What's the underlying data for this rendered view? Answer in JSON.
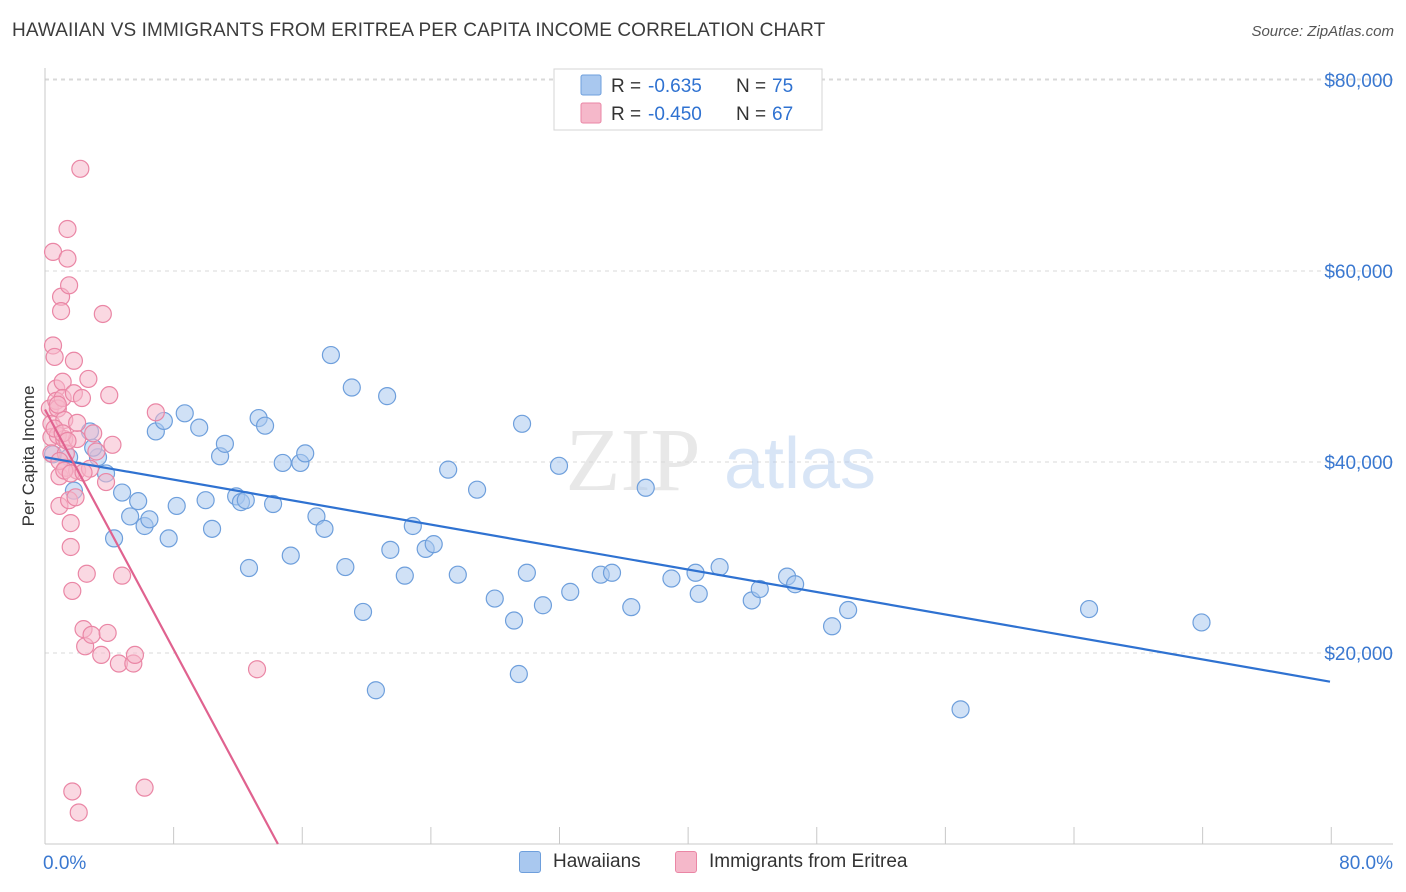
{
  "title": "HAWAIIAN VS IMMIGRANTS FROM ERITREA PER CAPITA INCOME CORRELATION CHART",
  "source": "Source: ZipAtlas.com",
  "watermark": {
    "zip": "ZIP",
    "atlas": "atlas"
  },
  "colors": {
    "blue_fill": "#a9c8ef",
    "blue_stroke": "#6e9fdc",
    "blue_line": "#2f72d1",
    "pink_fill": "#f5b8ca",
    "pink_stroke": "#ea86a5",
    "pink_line": "#e0628f",
    "axis_label": "#3a78d0",
    "grid": "#d9d9d9"
  },
  "legend_top": [
    {
      "r_label": "R = ",
      "r_value": "-0.635",
      "n_label": "N = ",
      "n_value": "75"
    },
    {
      "r_label": "R = ",
      "r_value": "-0.450",
      "n_label": "N = ",
      "n_value": "67"
    }
  ],
  "legend_bottom": [
    "Hawaiians",
    "Immigrants from Eritrea"
  ],
  "chart_data": {
    "type": "scatter",
    "title": "HAWAIIAN VS IMMIGRANTS FROM ERITREA PER CAPITA INCOME CORRELATION CHART",
    "xlabel": "",
    "ylabel": "Per Capita Income",
    "xlim": [
      0,
      80
    ],
    "ylim": [
      0,
      80000
    ],
    "x_tick_labels": [
      "0.0%",
      "80.0%"
    ],
    "y_ticks": [
      20000,
      40000,
      60000,
      80000
    ],
    "y_tick_labels": [
      "$20,000",
      "$40,000",
      "$60,000",
      "$80,000"
    ],
    "grid": true,
    "legend_position": "top-center",
    "series": [
      {
        "name": "Hawaiians",
        "r": -0.635,
        "n": 75,
        "trend": {
          "x": [
            0,
            80
          ],
          "y": [
            40500,
            17000
          ]
        },
        "points": [
          [
            0.5,
            40800
          ],
          [
            1.5,
            40500
          ],
          [
            1.8,
            37000
          ],
          [
            2.8,
            43200
          ],
          [
            3.3,
            40500
          ],
          [
            3.8,
            38800
          ],
          [
            4.3,
            32000
          ],
          [
            4.8,
            36800
          ],
          [
            5.3,
            34300
          ],
          [
            5.8,
            35900
          ],
          [
            6.2,
            33300
          ],
          [
            6.9,
            43200
          ],
          [
            7.4,
            44300
          ],
          [
            7.7,
            32000
          ],
          [
            8.2,
            35400
          ],
          [
            8.7,
            45100
          ],
          [
            9.6,
            43600
          ],
          [
            10.0,
            36000
          ],
          [
            10.4,
            33000
          ],
          [
            10.9,
            40600
          ],
          [
            11.2,
            41900
          ],
          [
            11.9,
            36400
          ],
          [
            12.2,
            35800
          ],
          [
            12.7,
            28900
          ],
          [
            13.3,
            44600
          ],
          [
            13.7,
            43800
          ],
          [
            14.2,
            35600
          ],
          [
            14.8,
            39900
          ],
          [
            15.3,
            30200
          ],
          [
            15.9,
            39900
          ],
          [
            16.2,
            40900
          ],
          [
            16.9,
            34300
          ],
          [
            17.4,
            33000
          ],
          [
            17.8,
            51200
          ],
          [
            18.7,
            29000
          ],
          [
            19.1,
            47800
          ],
          [
            19.8,
            24300
          ],
          [
            20.6,
            16100
          ],
          [
            21.3,
            46900
          ],
          [
            21.5,
            30800
          ],
          [
            22.4,
            28100
          ],
          [
            22.9,
            33300
          ],
          [
            23.7,
            30900
          ],
          [
            24.2,
            31400
          ],
          [
            25.1,
            39200
          ],
          [
            25.7,
            28200
          ],
          [
            26.9,
            37100
          ],
          [
            28.0,
            25700
          ],
          [
            29.2,
            23400
          ],
          [
            29.7,
            44000
          ],
          [
            30.0,
            28400
          ],
          [
            31.0,
            25000
          ],
          [
            32.0,
            39600
          ],
          [
            32.7,
            26400
          ],
          [
            34.6,
            28200
          ],
          [
            35.3,
            28400
          ],
          [
            36.5,
            24800
          ],
          [
            37.4,
            37300
          ],
          [
            39.0,
            27800
          ],
          [
            40.5,
            28400
          ],
          [
            40.7,
            26200
          ],
          [
            42.0,
            29000
          ],
          [
            44.0,
            25500
          ],
          [
            44.5,
            26700
          ],
          [
            46.2,
            28000
          ],
          [
            46.7,
            27200
          ],
          [
            49.0,
            22800
          ],
          [
            50.0,
            24500
          ],
          [
            29.5,
            17800
          ],
          [
            57.0,
            14100
          ],
          [
            65.0,
            24600
          ],
          [
            72.0,
            23200
          ],
          [
            3.0,
            41500
          ],
          [
            6.5,
            34000
          ],
          [
            12.5,
            36000
          ]
        ]
      },
      {
        "name": "Immigrants from Eritrea",
        "r": -0.45,
        "n": 67,
        "trend": {
          "x": [
            0,
            14.5
          ],
          "y": [
            45500,
            0
          ]
        },
        "points": [
          [
            0.3,
            45600
          ],
          [
            0.4,
            44000
          ],
          [
            0.4,
            42600
          ],
          [
            0.4,
            40900
          ],
          [
            0.5,
            62000
          ],
          [
            0.5,
            52200
          ],
          [
            0.6,
            51000
          ],
          [
            0.7,
            47700
          ],
          [
            0.7,
            46400
          ],
          [
            0.8,
            45600
          ],
          [
            0.8,
            42800
          ],
          [
            0.9,
            38500
          ],
          [
            0.9,
            35400
          ],
          [
            1.0,
            57300
          ],
          [
            1.0,
            55800
          ],
          [
            1.1,
            48400
          ],
          [
            1.1,
            46700
          ],
          [
            1.2,
            44400
          ],
          [
            1.2,
            42400
          ],
          [
            1.3,
            40900
          ],
          [
            1.3,
            39400
          ],
          [
            1.4,
            64400
          ],
          [
            1.4,
            61300
          ],
          [
            1.5,
            58500
          ],
          [
            1.5,
            36000
          ],
          [
            1.6,
            33600
          ],
          [
            1.6,
            31100
          ],
          [
            1.7,
            26500
          ],
          [
            1.7,
            5500
          ],
          [
            1.8,
            50600
          ],
          [
            1.8,
            47200
          ],
          [
            1.9,
            36300
          ],
          [
            2.0,
            42400
          ],
          [
            2.0,
            39100
          ],
          [
            2.1,
            3300
          ],
          [
            2.2,
            70700
          ],
          [
            2.3,
            46700
          ],
          [
            2.4,
            22500
          ],
          [
            2.5,
            20700
          ],
          [
            2.6,
            28300
          ],
          [
            2.7,
            48700
          ],
          [
            2.8,
            39300
          ],
          [
            2.9,
            21900
          ],
          [
            3.0,
            43000
          ],
          [
            3.2,
            41100
          ],
          [
            3.5,
            19800
          ],
          [
            3.6,
            55500
          ],
          [
            3.8,
            37900
          ],
          [
            3.9,
            22100
          ],
          [
            4.0,
            47000
          ],
          [
            4.2,
            41800
          ],
          [
            4.6,
            18900
          ],
          [
            4.8,
            28100
          ],
          [
            5.5,
            18900
          ],
          [
            5.6,
            19800
          ],
          [
            6.2,
            5900
          ],
          [
            6.9,
            45200
          ],
          [
            13.2,
            18300
          ],
          [
            0.6,
            43500
          ],
          [
            0.9,
            40100
          ],
          [
            1.2,
            39100
          ],
          [
            1.6,
            38800
          ],
          [
            2.0,
            44100
          ],
          [
            2.4,
            38900
          ],
          [
            0.8,
            46000
          ],
          [
            1.1,
            43000
          ],
          [
            1.4,
            42200
          ]
        ]
      }
    ]
  }
}
